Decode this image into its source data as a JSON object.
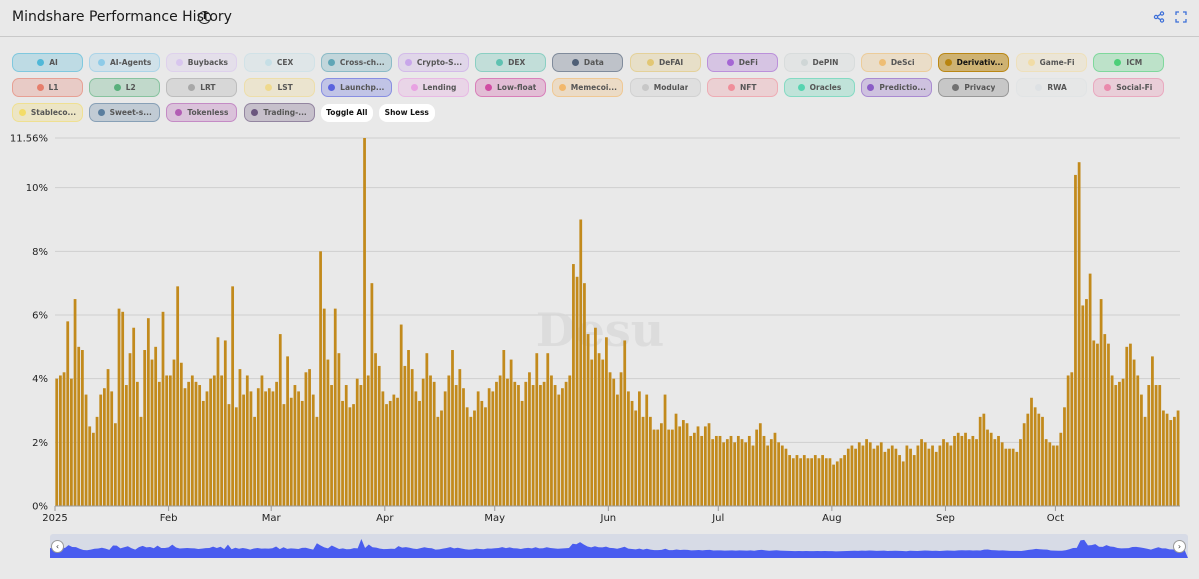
{
  "header": {
    "title": "Mindshare Performance History",
    "info_icon": "info-icon",
    "share_icon": "share-icon",
    "fullscreen_icon": "fullscreen-icon"
  },
  "filters": {
    "chips": [
      {
        "label": "AI",
        "color": "#4fb8d8",
        "active": false
      },
      {
        "label": "AI-Agents",
        "color": "#8ecbe8",
        "active": false
      },
      {
        "label": "Buybacks",
        "color": "#d8c6ee",
        "active": false
      },
      {
        "label": "CEX",
        "color": "#c6dfe6",
        "active": false
      },
      {
        "label": "Cross-ch...",
        "color": "#5fa6b6",
        "active": false
      },
      {
        "label": "Crypto-S...",
        "color": "#c8a6ea",
        "active": false
      },
      {
        "label": "DEX",
        "color": "#5ec2b1",
        "active": false
      },
      {
        "label": "Data",
        "color": "#4f5f76",
        "active": false
      },
      {
        "label": "DeFAI",
        "color": "#e2c774",
        "active": false
      },
      {
        "label": "DeFi",
        "color": "#a566d4",
        "active": false
      },
      {
        "label": "DePIN",
        "color": "#cfd6d6",
        "active": false
      },
      {
        "label": "DeSci",
        "color": "#eebd74",
        "active": false
      },
      {
        "label": "Derivativ...",
        "color": "#b88510",
        "active": true
      },
      {
        "label": "Game-Fi",
        "color": "#f1dca6",
        "active": false
      },
      {
        "label": "ICM",
        "color": "#4ccf78",
        "active": false
      },
      {
        "label": "L1",
        "color": "#e67e6c",
        "active": false
      },
      {
        "label": "L2",
        "color": "#59b07c",
        "active": false
      },
      {
        "label": "LRT",
        "color": "#a8a8a8",
        "active": false
      },
      {
        "label": "LST",
        "color": "#efd98d",
        "active": false
      },
      {
        "label": "Launchp...",
        "color": "#5a63de",
        "active": false
      },
      {
        "label": "Lending",
        "color": "#e8a2e2",
        "active": false
      },
      {
        "label": "Low-float",
        "color": "#d04da3",
        "active": false
      },
      {
        "label": "Memecoi...",
        "color": "#f2b86c",
        "active": false
      },
      {
        "label": "Modular",
        "color": "#c7c7c7",
        "active": false
      },
      {
        "label": "NFT",
        "color": "#f08e9a",
        "active": false
      },
      {
        "label": "Oracles",
        "color": "#56d4b0",
        "active": false
      },
      {
        "label": "Predictio...",
        "color": "#8a5cc6",
        "active": false
      },
      {
        "label": "Privacy",
        "color": "#717171",
        "active": false
      },
      {
        "label": "RWA",
        "color": "#dde1e4",
        "active": false
      },
      {
        "label": "Social-Fi",
        "color": "#ea8aac",
        "active": false
      },
      {
        "label": "Stableco...",
        "color": "#f3dc68",
        "active": false
      },
      {
        "label": "Sweet-s...",
        "color": "#5a7e9e",
        "active": false
      },
      {
        "label": "Tokenless",
        "color": "#b25eb4",
        "active": false
      },
      {
        "label": "Trading-...",
        "color": "#6a567e",
        "active": false
      }
    ],
    "toggle_all_label": "Toggle All",
    "show_less_label": "Show Less"
  },
  "watermark": "Desu",
  "chart_data": {
    "type": "bar",
    "series": [
      {
        "name": "Derivatives",
        "color": "#c28a1c"
      }
    ],
    "x_ticks": [
      "2025",
      "Feb",
      "Mar",
      "Apr",
      "May",
      "Jun",
      "Jul",
      "Aug",
      "Sep",
      "Oct"
    ],
    "y_ticks": [
      "0%",
      "2%",
      "4%",
      "6%",
      "8%",
      "10%",
      "11.56%"
    ],
    "ylim": [
      0,
      11.56
    ],
    "grid": true,
    "start_date": "2025-01-01",
    "values": [
      4.0,
      4.1,
      4.2,
      5.8,
      4.0,
      6.5,
      5.0,
      4.9,
      3.5,
      2.5,
      2.3,
      2.8,
      3.5,
      3.7,
      4.3,
      3.6,
      2.6,
      6.2,
      6.1,
      3.8,
      4.8,
      5.6,
      3.9,
      2.8,
      4.9,
      5.9,
      4.6,
      5.0,
      3.9,
      6.1,
      4.1,
      4.1,
      4.6,
      6.9,
      4.5,
      3.7,
      3.9,
      4.1,
      3.9,
      3.8,
      3.3,
      3.6,
      4.0,
      4.1,
      5.3,
      4.1,
      5.2,
      3.2,
      6.9,
      3.1,
      4.3,
      3.5,
      4.1,
      3.6,
      2.8,
      3.7,
      4.1,
      3.6,
      3.7,
      3.6,
      3.9,
      5.4,
      3.2,
      4.7,
      3.4,
      3.8,
      3.6,
      3.3,
      4.2,
      4.3,
      3.5,
      2.8,
      8.0,
      6.2,
      4.6,
      3.8,
      6.2,
      4.8,
      3.3,
      3.8,
      3.1,
      3.2,
      4.0,
      3.8,
      11.56,
      4.1,
      7.0,
      4.8,
      4.4,
      3.6,
      3.2,
      3.3,
      3.5,
      3.4,
      5.7,
      4.4,
      4.9,
      4.3,
      3.6,
      3.3,
      4.0,
      4.8,
      4.1,
      3.9,
      2.8,
      3.0,
      3.6,
      4.1,
      4.9,
      3.8,
      4.3,
      3.7,
      3.1,
      2.8,
      3.0,
      3.6,
      3.3,
      3.1,
      3.7,
      3.6,
      3.9,
      4.1,
      4.9,
      4.0,
      4.6,
      3.9,
      3.8,
      3.3,
      3.9,
      4.2,
      3.8,
      4.8,
      3.8,
      3.9,
      4.8,
      4.1,
      3.8,
      3.5,
      3.7,
      3.9,
      4.1,
      7.6,
      7.2,
      9.0,
      7.0,
      5.4,
      4.6,
      5.6,
      4.8,
      4.6,
      5.3,
      4.2,
      4.0,
      3.5,
      4.2,
      5.2,
      3.6,
      3.3,
      3.0,
      3.6,
      2.8,
      3.5,
      2.8,
      2.4,
      2.4,
      2.6,
      3.5,
      2.4,
      2.4,
      2.9,
      2.5,
      2.7,
      2.6,
      2.2,
      2.3,
      2.5,
      2.2,
      2.5,
      2.6,
      2.1,
      2.2,
      2.2,
      2.0,
      2.1,
      2.2,
      2.0,
      2.2,
      2.1,
      2.0,
      2.2,
      1.9,
      2.4,
      2.6,
      2.2,
      1.9,
      2.1,
      2.3,
      2.0,
      1.9,
      1.8,
      1.6,
      1.5,
      1.6,
      1.5,
      1.6,
      1.5,
      1.5,
      1.6,
      1.5,
      1.6,
      1.5,
      1.5,
      1.3,
      1.4,
      1.5,
      1.6,
      1.8,
      1.9,
      1.8,
      2.0,
      1.9,
      2.1,
      2.0,
      1.8,
      1.9,
      2.0,
      1.7,
      1.8,
      1.9,
      1.8,
      1.6,
      1.4,
      1.9,
      1.8,
      1.6,
      1.9,
      2.1,
      2.0,
      1.8,
      1.9,
      1.7,
      1.9,
      2.1,
      2.0,
      1.9,
      2.2,
      2.3,
      2.2,
      2.3,
      2.1,
      2.2,
      2.1,
      2.8,
      2.9,
      2.4,
      2.3,
      2.1,
      2.2,
      2.0,
      1.8,
      1.8,
      1.8,
      1.7,
      2.1,
      2.6,
      2.9,
      3.4,
      3.1,
      2.9,
      2.8,
      2.1,
      2.0,
      1.9,
      1.9,
      2.3,
      3.1,
      4.1,
      4.2,
      10.4,
      10.8,
      6.3,
      6.5,
      7.3,
      5.2,
      5.1,
      6.5,
      5.4,
      5.1,
      4.1,
      3.8,
      3.9,
      4.0,
      5.0,
      5.1,
      4.6,
      4.1,
      3.5,
      2.8,
      3.8,
      4.7,
      3.8,
      3.8,
      3.0,
      2.9,
      2.7,
      2.8,
      3.0
    ]
  }
}
